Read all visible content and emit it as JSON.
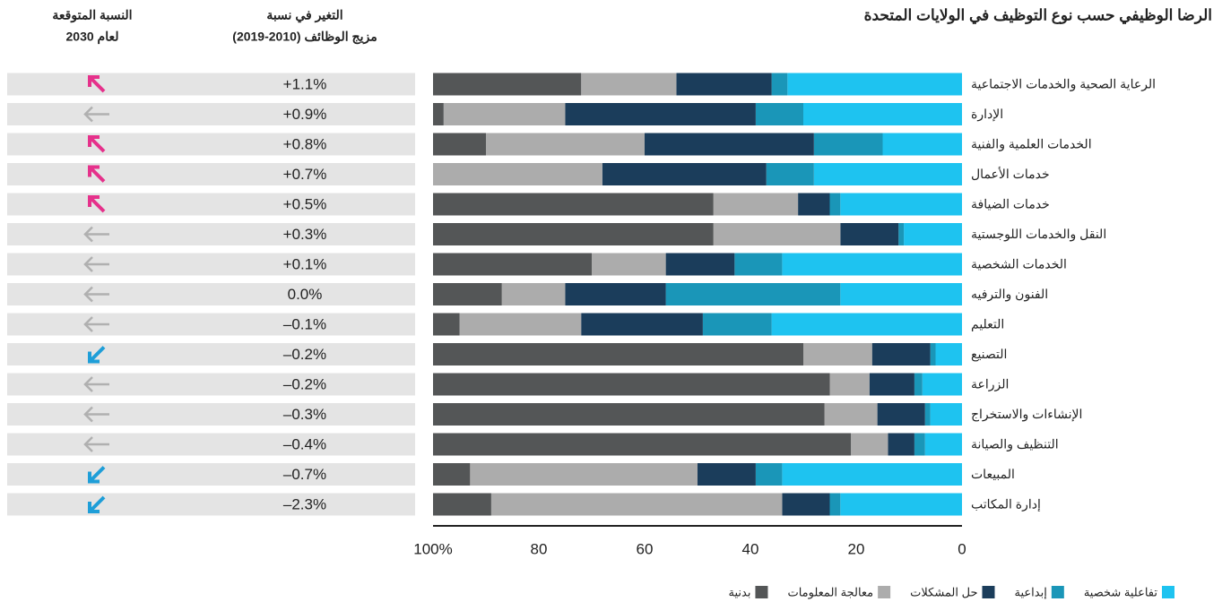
{
  "chart_data": {
    "type": "bar",
    "orientation": "horizontal",
    "title": "الرضا الوظيفي حسب نوع التوظيف في الولايات المتحدة",
    "categories": [
      "الرعاية الصحية والخدمات الاجتماعية",
      "الإدارة",
      "الخدمات العلمية والفنية",
      "خدمات الأعمال",
      "خدمات الضيافة",
      "النقل والخدمات اللوجستية",
      "الخدمات الشخصية",
      "الفنون والترفيه",
      "التعليم",
      "التصنيع",
      "الزراعة",
      "الإنشاءات والاستخراج",
      "التنظيف والصيانة",
      "المبيعات",
      "إدارة المكاتب"
    ],
    "series": [
      {
        "name": "تفاعلية شخصية",
        "color": "#1ec3f0",
        "values": [
          33,
          30,
          15,
          28,
          23,
          11,
          34,
          23,
          36,
          5,
          7.5,
          6,
          7,
          34,
          23
        ]
      },
      {
        "name": "إبداعية",
        "color": "#1a96b8",
        "values": [
          3,
          9,
          13,
          9,
          2,
          1,
          9,
          33,
          13,
          1,
          1.5,
          1,
          2,
          5,
          2
        ]
      },
      {
        "name": "حل المشكلات",
        "color": "#1b3d5b",
        "values": [
          18,
          36,
          32,
          31,
          6,
          11,
          13,
          19,
          23,
          11,
          8.5,
          9,
          5,
          11,
          9
        ]
      },
      {
        "name": "معالجة المعلومات",
        "color": "#acacac",
        "values": [
          18,
          23,
          30,
          32,
          16,
          24,
          14,
          12,
          23,
          13,
          7.5,
          10,
          7,
          43,
          55
        ]
      },
      {
        "name": "بدنية",
        "color": "#545657",
        "values": [
          28,
          2,
          10,
          0,
          53,
          53,
          30,
          13,
          5,
          70,
          75,
          74,
          79,
          7,
          11
        ]
      }
    ],
    "xlim": [
      0,
      100
    ],
    "xticks": [
      0,
      20,
      40,
      60,
      80,
      {
        "value": 100,
        "label": "100%"
      }
    ],
    "columns": [
      {
        "header": [
          "النسبة المتوقعة",
          "لعام 2030"
        ],
        "trend": [
          "up",
          "flat",
          "up",
          "up",
          "up",
          "flat",
          "flat",
          "flat",
          "flat",
          "down",
          "flat",
          "flat",
          "flat",
          "down",
          "down"
        ]
      },
      {
        "header": [
          "التغير في نسبة",
          "مزيج الوظائف (2010-2019)"
        ],
        "values": [
          "+1.1%",
          "+0.9%",
          "+0.8%",
          "+0.7%",
          "+0.5%",
          "+0.3%",
          "+0.1%",
          "0.0%",
          "–0.1%",
          "–0.2%",
          "–0.2%",
          "–0.3%",
          "–0.4%",
          "–0.7%",
          "–2.3%"
        ]
      }
    ],
    "trend_colors": {
      "up": "#e5318b",
      "flat": "#b0b0b0",
      "down": "#1e9ed8"
    }
  }
}
